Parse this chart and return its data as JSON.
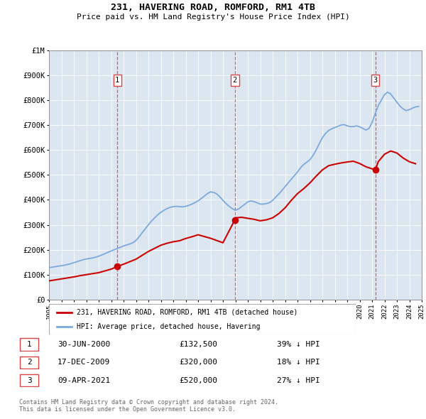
{
  "title": "231, HAVERING ROAD, ROMFORD, RM1 4TB",
  "subtitle": "Price paid vs. HM Land Registry's House Price Index (HPI)",
  "hpi_color": "#7aaadd",
  "price_color": "#cc0000",
  "marker_color": "#cc0000",
  "vline_color": "#dd4444",
  "bg_color": "#dce6f1",
  "grid_color": "#ffffff",
  "legend_label_price": "231, HAVERING ROAD, ROMFORD, RM1 4TB (detached house)",
  "legend_label_hpi": "HPI: Average price, detached house, Havering",
  "footnote1": "Contains HM Land Registry data © Crown copyright and database right 2024.",
  "footnote2": "This data is licensed under the Open Government Licence v3.0.",
  "transactions": [
    {
      "num": 1,
      "date": "30-JUN-2000",
      "year": 2000.5,
      "price": 132500,
      "pct": "39%",
      "dir": "↓"
    },
    {
      "num": 2,
      "date": "17-DEC-2009",
      "year": 2009.96,
      "price": 320000,
      "pct": "18%",
      "dir": "↓"
    },
    {
      "num": 3,
      "date": "09-APR-2021",
      "year": 2021.27,
      "price": 520000,
      "pct": "27%",
      "dir": "↓"
    }
  ],
  "hpi_data_years": [
    1995.0,
    1995.25,
    1995.5,
    1995.75,
    1996.0,
    1996.25,
    1996.5,
    1996.75,
    1997.0,
    1997.25,
    1997.5,
    1997.75,
    1998.0,
    1998.25,
    1998.5,
    1998.75,
    1999.0,
    1999.25,
    1999.5,
    1999.75,
    2000.0,
    2000.25,
    2000.5,
    2000.75,
    2001.0,
    2001.25,
    2001.5,
    2001.75,
    2002.0,
    2002.25,
    2002.5,
    2002.75,
    2003.0,
    2003.25,
    2003.5,
    2003.75,
    2004.0,
    2004.25,
    2004.5,
    2004.75,
    2005.0,
    2005.25,
    2005.5,
    2005.75,
    2006.0,
    2006.25,
    2006.5,
    2006.75,
    2007.0,
    2007.25,
    2007.5,
    2007.75,
    2008.0,
    2008.25,
    2008.5,
    2008.75,
    2009.0,
    2009.25,
    2009.5,
    2009.75,
    2010.0,
    2010.25,
    2010.5,
    2010.75,
    2011.0,
    2011.25,
    2011.5,
    2011.75,
    2012.0,
    2012.25,
    2012.5,
    2012.75,
    2013.0,
    2013.25,
    2013.5,
    2013.75,
    2014.0,
    2014.25,
    2014.5,
    2014.75,
    2015.0,
    2015.25,
    2015.5,
    2015.75,
    2016.0,
    2016.25,
    2016.5,
    2016.75,
    2017.0,
    2017.25,
    2017.5,
    2017.75,
    2018.0,
    2018.25,
    2018.5,
    2018.75,
    2019.0,
    2019.25,
    2019.5,
    2019.75,
    2020.0,
    2020.25,
    2020.5,
    2020.75,
    2021.0,
    2021.25,
    2021.5,
    2021.75,
    2022.0,
    2022.25,
    2022.5,
    2022.75,
    2023.0,
    2023.25,
    2023.5,
    2023.75,
    2024.0,
    2024.25,
    2024.5,
    2024.75
  ],
  "hpi_data_values": [
    128000,
    130000,
    132000,
    134000,
    136000,
    138000,
    141000,
    144000,
    148000,
    152000,
    156000,
    160000,
    163000,
    165000,
    167000,
    170000,
    174000,
    179000,
    184000,
    190000,
    195000,
    200000,
    205000,
    210000,
    215000,
    219000,
    223000,
    228000,
    237000,
    252000,
    268000,
    284000,
    300000,
    315000,
    328000,
    340000,
    350000,
    358000,
    365000,
    370000,
    373000,
    374000,
    373000,
    372000,
    374000,
    378000,
    383000,
    389000,
    396000,
    405000,
    415000,
    425000,
    432000,
    430000,
    424000,
    412000,
    398000,
    385000,
    374000,
    365000,
    358000,
    363000,
    373000,
    382000,
    392000,
    396000,
    393000,
    388000,
    383000,
    383000,
    385000,
    389000,
    398000,
    411000,
    424000,
    438000,
    453000,
    468000,
    483000,
    497000,
    512000,
    529000,
    542000,
    551000,
    561000,
    578000,
    600000,
    625000,
    649000,
    666000,
    678000,
    685000,
    690000,
    695000,
    700000,
    702000,
    697000,
    694000,
    694000,
    697000,
    693000,
    687000,
    680000,
    686000,
    710000,
    745000,
    778000,
    800000,
    822000,
    832000,
    825000,
    808000,
    792000,
    776000,
    765000,
    758000,
    762000,
    768000,
    773000,
    775000
  ],
  "price_data_years": [
    1995.0,
    1995.5,
    1996.0,
    1996.5,
    1997.0,
    1997.5,
    1998.0,
    1998.5,
    1999.0,
    1999.5,
    2000.0,
    2000.5,
    2001.0,
    2002.0,
    2003.0,
    2004.0,
    2004.5,
    2005.0,
    2005.5,
    2006.0,
    2006.5,
    2007.0,
    2007.5,
    2008.0,
    2008.5,
    2009.0,
    2009.96,
    2010.0,
    2010.5,
    2011.0,
    2011.5,
    2012.0,
    2012.5,
    2013.0,
    2013.5,
    2014.0,
    2014.5,
    2015.0,
    2015.5,
    2016.0,
    2016.5,
    2017.0,
    2017.5,
    2018.0,
    2018.5,
    2019.0,
    2019.5,
    2020.0,
    2020.5,
    2021.27,
    2021.5,
    2022.0,
    2022.5,
    2023.0,
    2023.5,
    2024.0,
    2024.5
  ],
  "price_data_values": [
    75000,
    79000,
    83000,
    87000,
    91000,
    96000,
    100000,
    104000,
    108000,
    115000,
    122000,
    132500,
    142000,
    162000,
    193000,
    218000,
    226000,
    232000,
    236000,
    245000,
    252000,
    260000,
    253000,
    246000,
    237000,
    228000,
    320000,
    328000,
    330000,
    326000,
    322000,
    316000,
    320000,
    328000,
    345000,
    368000,
    398000,
    425000,
    445000,
    468000,
    495000,
    520000,
    537000,
    543000,
    548000,
    552000,
    555000,
    546000,
    533000,
    520000,
    553000,
    583000,
    596000,
    588000,
    568000,
    553000,
    545000
  ],
  "ylim": [
    0,
    1000000
  ],
  "xlim": [
    1995,
    2025
  ],
  "yticks": [
    0,
    100000,
    200000,
    300000,
    400000,
    500000,
    600000,
    700000,
    800000,
    900000,
    1000000
  ],
  "ytick_labels": [
    "£0",
    "£100K",
    "£200K",
    "£300K",
    "£400K",
    "£500K",
    "£600K",
    "£700K",
    "£800K",
    "£900K",
    "£1M"
  ]
}
